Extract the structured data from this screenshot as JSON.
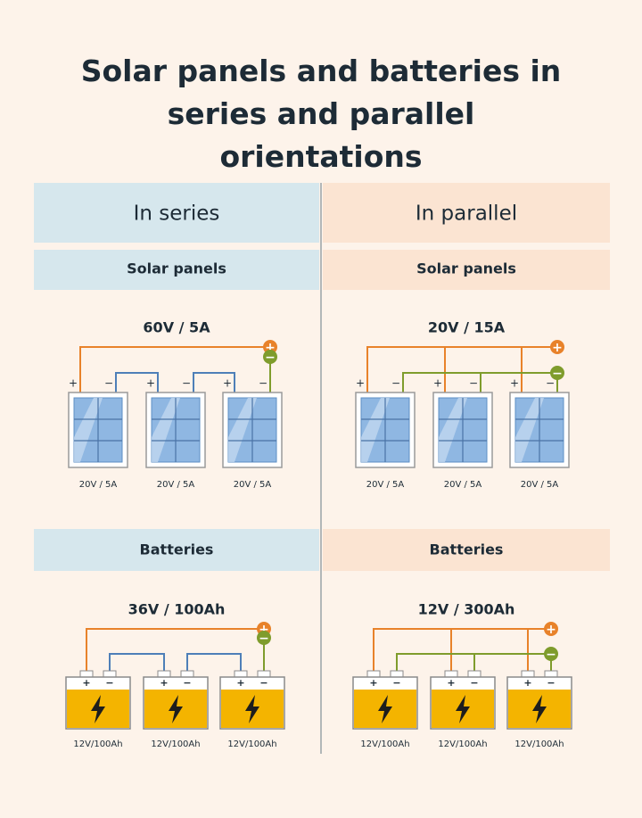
{
  "title": "Solar panels and batteries in series and parallel orientations",
  "terminal_labels": {
    "positive": "+",
    "negative": "−"
  },
  "columns": [
    {
      "heading": "In series",
      "panels": {
        "label": "Solar panels",
        "total": "60V / 5A",
        "units": [
          "20V / 5A",
          "20V / 5A",
          "20V / 5A"
        ]
      },
      "batteries": {
        "label": "Batteries",
        "total": "36V / 100Ah",
        "units": [
          "12V/100Ah",
          "12V/100Ah",
          "12V/100Ah"
        ]
      }
    },
    {
      "heading": "In parallel",
      "panels": {
        "label": "Solar panels",
        "total": "20V / 15A",
        "units": [
          "20V / 5A",
          "20V / 5A",
          "20V / 5A"
        ]
      },
      "batteries": {
        "label": "Batteries",
        "total": "12V / 300Ah",
        "units": [
          "12V/100Ah",
          "12V/100Ah",
          "12V/100Ah"
        ]
      }
    }
  ]
}
